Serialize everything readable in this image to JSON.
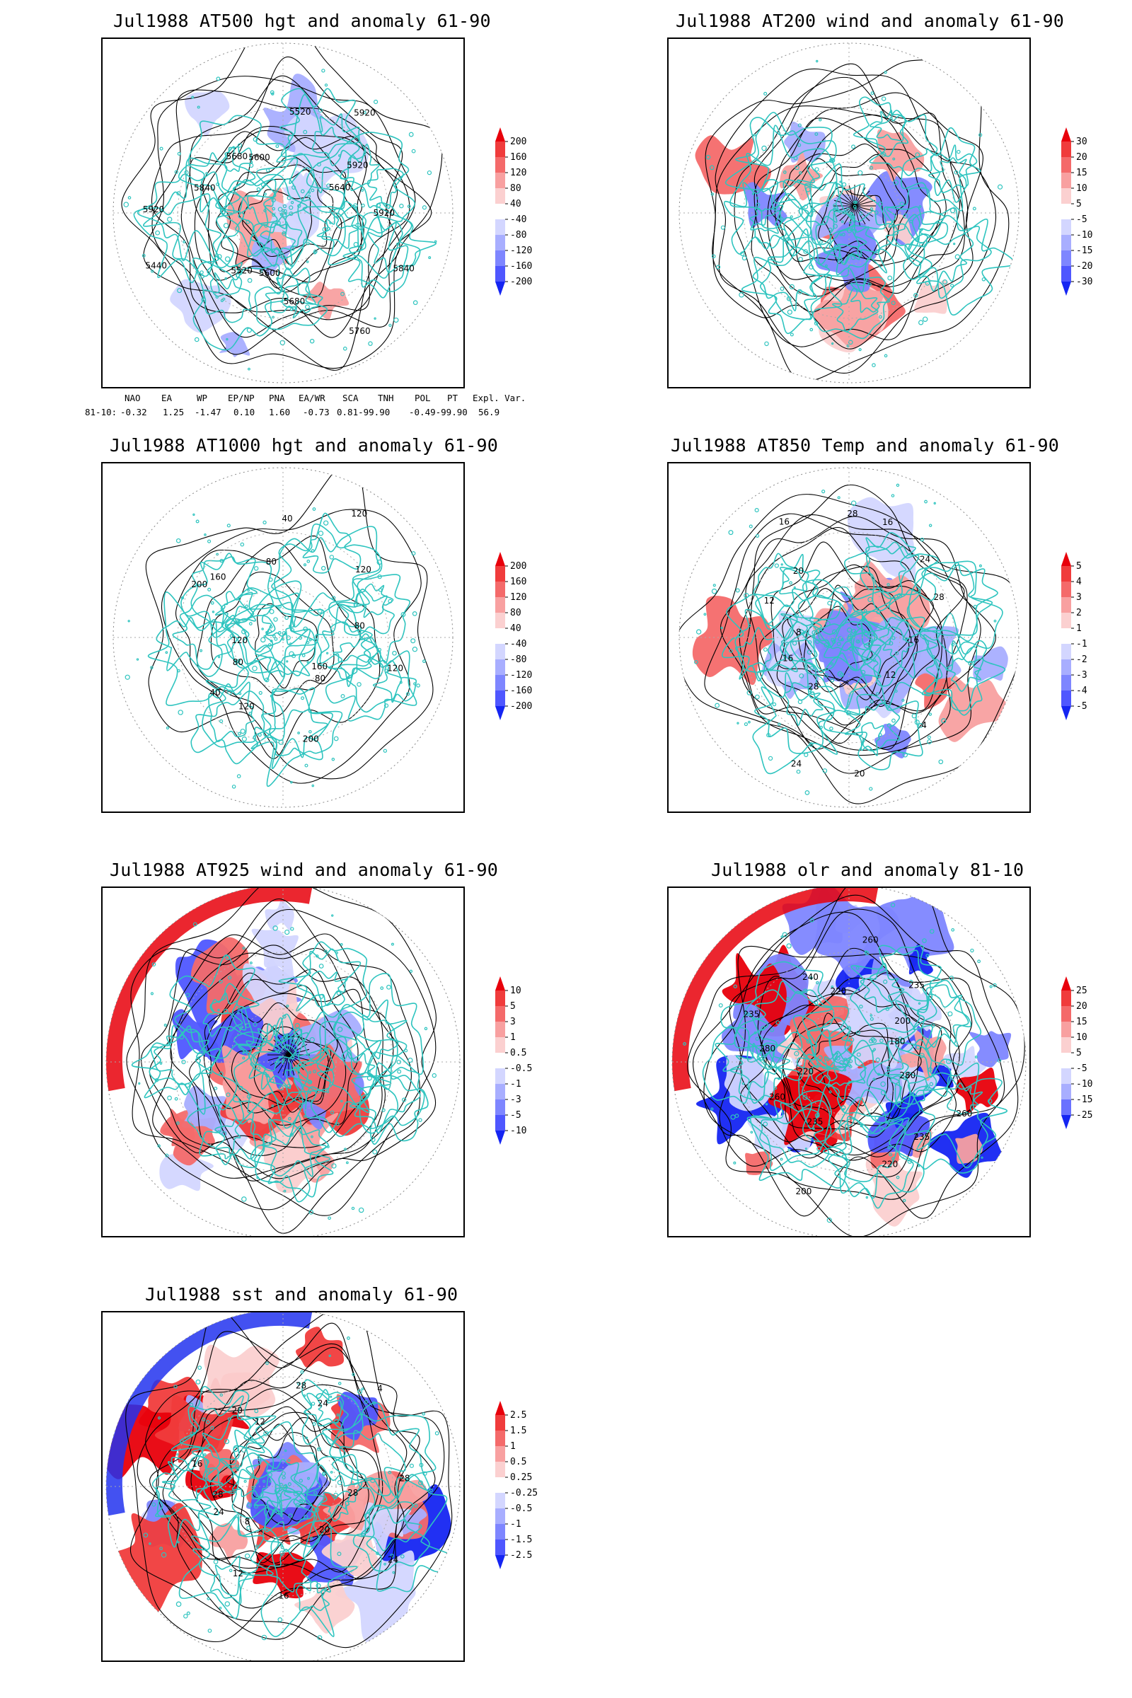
{
  "panels": [
    {
      "title": "Jul1988 AT500 hgt and anomaly 61-90",
      "field": "hgt500",
      "ticks": [
        "200",
        "160",
        "120",
        "80",
        "40",
        "-40",
        "-80",
        "-120",
        "-160",
        "-200"
      ],
      "labels": [
        "5920",
        "5840",
        "5760",
        "5680",
        "5600",
        "5520",
        "5440",
        "5920",
        "5840",
        "5680",
        "5600",
        "5520",
        "5920",
        "5920",
        "5640"
      ]
    },
    {
      "title": "Jul1988 AT200 wind and anomaly 61-90",
      "field": "wind200",
      "ticks": [
        "30",
        "20",
        "15",
        "10",
        "5",
        "-5",
        "-10",
        "-15",
        "-20",
        "-30"
      ],
      "labels": []
    },
    {
      "title": "Jul1988 AT1000 hgt and anomaly 61-90",
      "field": "hgt1000",
      "ticks": [
        "200",
        "160",
        "120",
        "80",
        "40",
        "-40",
        "-80",
        "-120",
        "-160",
        "-200"
      ],
      "labels": [
        "120",
        "160",
        "80",
        "200",
        "120",
        "40",
        "80",
        "120",
        "200",
        "160",
        "80",
        "40",
        "120",
        "120",
        "80"
      ]
    },
    {
      "title": "Jul1988 AT850 Temp and anomaly 61-90",
      "field": "t850",
      "ticks": [
        "5",
        "4",
        "3",
        "2",
        "1",
        "-1",
        "-2",
        "-3",
        "-4",
        "-5"
      ],
      "labels": [
        "16",
        "12",
        "4",
        "20",
        "24",
        "28",
        "16",
        "8",
        "12",
        "20",
        "16",
        "28",
        "16",
        "24",
        "28"
      ]
    },
    {
      "title": "Jul1988 AT925 wind and anomaly 61-90",
      "field": "wind925",
      "ticks": [
        "10",
        "5",
        "3",
        "1",
        "0.5",
        "-0.5",
        "-1",
        "-3",
        "-5",
        "-10"
      ],
      "labels": []
    },
    {
      "title": "Jul1988 olr and anomaly 81-10",
      "field": "olr",
      "ticks": [
        "25",
        "20",
        "15",
        "10",
        "5",
        "-5",
        "-10",
        "-15",
        "-25"
      ],
      "labels": [
        "280",
        "260",
        "235",
        "220",
        "200",
        "235",
        "260",
        "220",
        "280",
        "235",
        "240",
        "220",
        "260",
        "235",
        "200",
        "180"
      ]
    },
    {
      "title": "Jul1988 sst and anomaly 61-90",
      "field": "sst",
      "ticks": [
        "2.5",
        "1.5",
        "1",
        "0.5",
        "0.25",
        "-0.25",
        "-0.5",
        "-1",
        "-1.5",
        "-2.5"
      ],
      "labels": [
        "28",
        "24",
        "20",
        "16",
        "12",
        "8",
        "24",
        "28",
        "16",
        "20",
        "12",
        "28",
        "24",
        "4",
        "28"
      ]
    }
  ],
  "teleconnection": {
    "headers": [
      "NAO",
      "EA",
      "WP",
      "EP/NP",
      "PNA",
      "EA/WR",
      "SCA",
      "TNH",
      "POL",
      "PT",
      "Expl. Var."
    ],
    "row_label": "81-10:",
    "values": [
      "-0.32",
      "1.25",
      "-1.47",
      "0.10",
      "1.60",
      "-0.73",
      "0.81-99.90",
      "",
      "-0.49-99.90",
      "",
      "56.9"
    ]
  },
  "colors": {
    "coast": "#2ec4bf",
    "contour": "#000000",
    "scale10": [
      "#e8000b",
      "#f03c3c",
      "#f46a6a",
      "#f8a0a0",
      "#fbd0d0",
      "#ffffff",
      "#d3d6ff",
      "#a8aeff",
      "#7e86ff",
      "#4f57ff",
      "#1525f2"
    ],
    "scale9": [
      "#e8000b",
      "#f03c3c",
      "#f46a6a",
      "#f8a0a0",
      "#fbd0d0",
      "#ffffff",
      "#d3d6ff",
      "#a8aeff",
      "#6a72ff",
      "#1525f2"
    ]
  }
}
